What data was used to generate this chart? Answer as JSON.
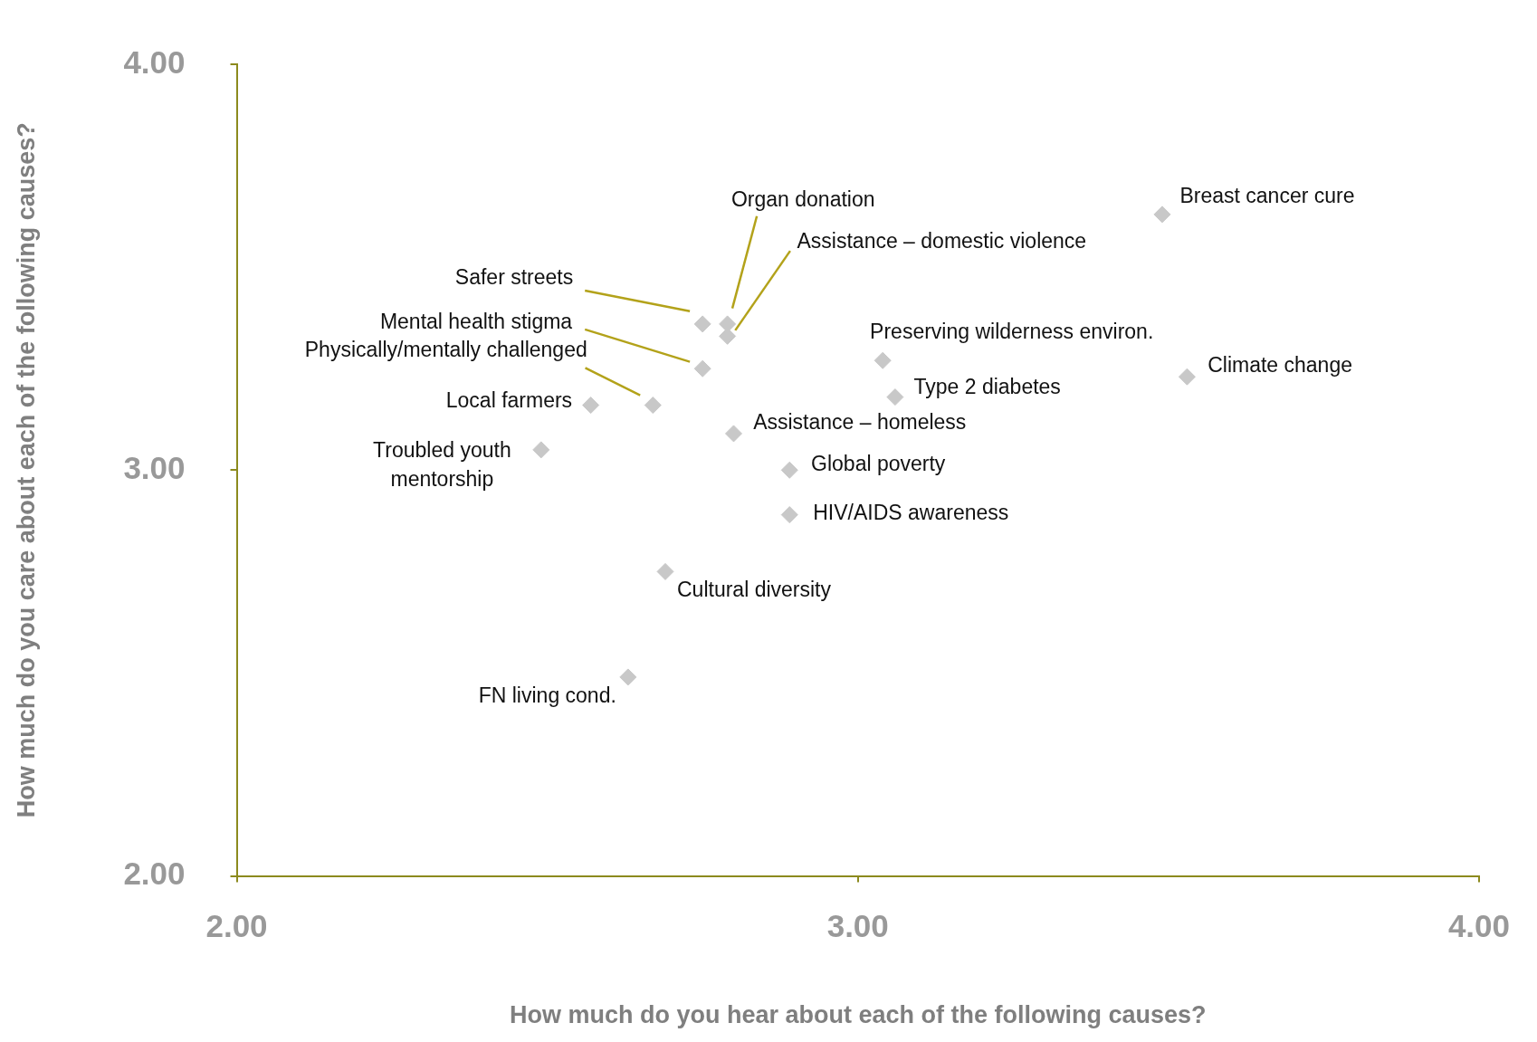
{
  "chart_data": {
    "type": "scatter",
    "xlabel": "How much do you hear about each of the following causes?",
    "ylabel": "How much do you care about each of the following causes?",
    "xlim": [
      2,
      4
    ],
    "ylim": [
      2,
      4
    ],
    "xticks": [
      {
        "value": 2,
        "label": "2.00"
      },
      {
        "value": 3,
        "label": "3.00"
      },
      {
        "value": 4,
        "label": "4.00"
      }
    ],
    "yticks": [
      {
        "value": 2,
        "label": "2.00"
      },
      {
        "value": 3,
        "label": "3.00"
      },
      {
        "value": 4,
        "label": "4.00"
      }
    ],
    "grid": false,
    "legend": false,
    "marker": "diamond",
    "series": [
      {
        "name": "Breast cancer cure",
        "color": "#c8c8c8",
        "x": [
          3.49
        ],
        "values": [
          3.63
        ]
      },
      {
        "name": "Organ donation",
        "color": "#c8c8c8",
        "x": [
          2.79
        ],
        "values": [
          3.36
        ]
      },
      {
        "name": "Assistance – domestic violence",
        "color": "#c8c8c8",
        "x": [
          2.79
        ],
        "values": [
          3.33
        ]
      },
      {
        "name": "Safer streets",
        "color": "#c8c8c8",
        "x": [
          2.75
        ],
        "values": [
          3.36
        ]
      },
      {
        "name": "Mental health stigma",
        "color": "#c8c8c8",
        "x": [
          2.75
        ],
        "values": [
          3.25
        ]
      },
      {
        "name": "Physically/mentally challenged",
        "color": "#c8c8c8",
        "x": [
          2.67
        ],
        "values": [
          3.16
        ]
      },
      {
        "name": "Local farmers",
        "color": "#c8c8c8",
        "x": [
          2.57
        ],
        "values": [
          3.16
        ]
      },
      {
        "name": "Troubled youth mentorship",
        "color": "#c8c8c8",
        "x": [
          2.49
        ],
        "values": [
          3.05
        ]
      },
      {
        "name": "Preserving wilderness environ.",
        "color": "#c8c8c8",
        "x": [
          3.04
        ],
        "values": [
          3.27
        ]
      },
      {
        "name": "Climate change",
        "color": "#c8c8c8",
        "x": [
          3.53
        ],
        "values": [
          3.23
        ]
      },
      {
        "name": "Type 2 diabetes",
        "color": "#c8c8c8",
        "x": [
          3.06
        ],
        "values": [
          3.18
        ]
      },
      {
        "name": "Assistance – homeless",
        "color": "#c8c8c8",
        "x": [
          2.8
        ],
        "values": [
          3.09
        ]
      },
      {
        "name": "Global poverty",
        "color": "#c8c8c8",
        "x": [
          2.89
        ],
        "values": [
          3.0
        ]
      },
      {
        "name": "HIV/AIDS awareness",
        "color": "#c8c8c8",
        "x": [
          2.89
        ],
        "values": [
          2.89
        ]
      },
      {
        "name": "Cultural diversity",
        "color": "#c8c8c8",
        "x": [
          2.69
        ],
        "values": [
          2.75
        ]
      },
      {
        "name": "FN living cond.",
        "color": "#c8c8c8",
        "x": [
          2.63
        ],
        "values": [
          2.49
        ]
      }
    ]
  }
}
